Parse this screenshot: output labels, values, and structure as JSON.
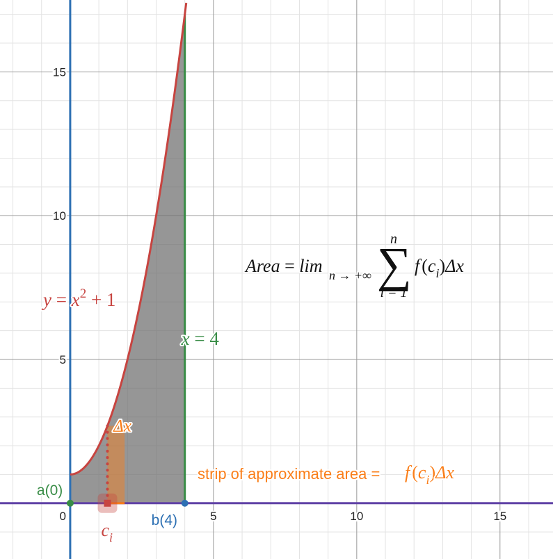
{
  "chart_data": {
    "type": "diagram",
    "xlim": [
      -2.45,
      16.85
    ],
    "ylim": [
      -1.94,
      17.5
    ],
    "grid": true,
    "x_ticks": [
      {
        "value": 5,
        "label": "5"
      },
      {
        "value": 10,
        "label": "10"
      },
      {
        "value": 15,
        "label": "15"
      }
    ],
    "y_ticks": [
      {
        "value": 5,
        "label": "5"
      },
      {
        "value": 10,
        "label": "10"
      },
      {
        "value": 15,
        "label": "15"
      }
    ],
    "origin_label": "0",
    "curve": {
      "expression_lhs": "y",
      "expression_rhs_base": "x",
      "expression_rhs_exp": "2",
      "expression_rhs_tail": "+ 1",
      "x_range": [
        0,
        4
      ],
      "color": "#c74440"
    },
    "vertical_line": {
      "x": 4,
      "lhs": "x",
      "rhs": "4",
      "color": "#388c46"
    },
    "shaded_region": {
      "from": 0,
      "to": 4,
      "color": "#6e6e6e"
    },
    "strip": {
      "from": 1.3,
      "to": 1.9,
      "color": "#fa7e19"
    },
    "sample_point": {
      "x": 1.3,
      "label_main": "c",
      "label_sub": "i",
      "color": "#c74440"
    },
    "delta_x_label": "Δx",
    "point_a": {
      "x": 0,
      "label": "a(0)",
      "color": "#388c46"
    },
    "point_b": {
      "x": 4,
      "label": "b(4)",
      "color": "#2d70b3"
    },
    "strip_caption": {
      "text": "strip of approximate area =",
      "formula_f": "f",
      "formula_c": "c",
      "formula_sub": "i",
      "formula_dx": "Δx",
      "color": "#fa7e19"
    },
    "area_formula": {
      "lhs": "Area",
      "lim": "lim",
      "lim_sub": "n → +∞",
      "sum_upper": "n",
      "sum_lower": "i = 1",
      "summand_f": "f",
      "summand_c": "c",
      "summand_sub": "i",
      "summand_dx": "Δx"
    },
    "colors": {
      "x_axis": "#6042a6",
      "y_axis": "#2d70b3",
      "grid_major": "#999999",
      "grid_minor": "#e3e3e3"
    }
  }
}
